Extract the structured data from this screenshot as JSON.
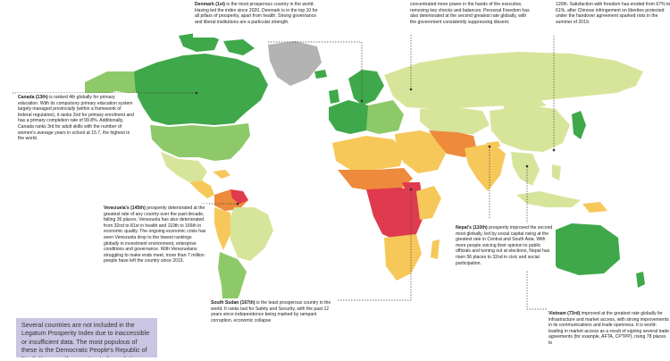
{
  "colors": {
    "ocean": "#ffffff",
    "top_tier": "#3fa84a",
    "second_tier": "#8ec969",
    "third_tier": "#d7e59b",
    "fourth_tier": "#f6c85a",
    "fifth_tier": "#ee8a3c",
    "bottom_tier": "#df3a4e",
    "not_included": "#b3b3b3",
    "note_background": "#c9c5e2"
  },
  "annotations": {
    "denmark": {
      "lead": "Denmark (1st)",
      "text": " is the most prosperous country in the world. Having led the index since 2020, Denmark is in the top 10 for all pillars of prosperity, apart from health. Strong governance and liberal institutions are a particular strength."
    },
    "russia": {
      "text": "concentrated more power in the hands of the executive, removing key checks and balances. Personal Freedom has also deteriorated at the second greatest rate globally, with the government consistently suppressing dissent."
    },
    "hongkong": {
      "text": "120th. Satisfaction with freedom has eroded from 67% to 61%, after Chinese infringement on liberties protected under the handover agreement sparked riots in the summer of 2019."
    },
    "canada": {
      "lead": "Canada (13th)",
      "text": " is ranked 4th globally for primary education. With its compulsory primary education system largely managed provincially (within a framework of federal regulation), it ranks 2nd for primary enrolment and has a primary completion rate of 99.8%. Additionally, Canada ranks 3rd for adult skills with the number of women's average years in school at 15.7, the highest in the world."
    },
    "venezuela": {
      "lead": "Venezuela's (145th)",
      "text": " prosperity deteriorated at the greatest rate of any country over the past decade, falling 36 places. Venezuela has also deteriorated from 32nd to 81st in health and 110th to 166th in economic quality. The ongoing economic crisis has seen Venezuela drop to the lowest rankings globally in investment environment, enterprise conditions and governance. With Venezuelans struggling to make ends meet, more than 7 million people have left the country since 2015."
    },
    "nepal": {
      "lead": "Nepal's (110th)",
      "text": " prosperity improved the second most globally, led by social capital rising at the greatest rate in Central and South Asia. With more people voicing their opinion to public officials and turning out at elections, Nepal has risen 56 places to 32nd in civic and social participation."
    },
    "south_sudan": {
      "lead": "South Sudan (167th)",
      "text": " is the least prosperous country in the world. It ranks last for Safety and Security, with the past 12 years since independence being marked by rampant corruption, economic collapse"
    },
    "vietnam": {
      "lead": "Vietnam (73rd)",
      "text": " improved at the greatest rate globally for infrastructure and market access, with strong improvements in its communications and trade openness. It is world-leading in market access as a result of signing several trade agreements (for example, AFTA, CPTPP), rising 78 places to"
    }
  },
  "note": {
    "text": "Several countries are not included in the Legatum Prosperity Index due to inaccessible or insufficient data. The most populous of these is the Democratic People's Republic of North Korea, with an estimated population"
  }
}
